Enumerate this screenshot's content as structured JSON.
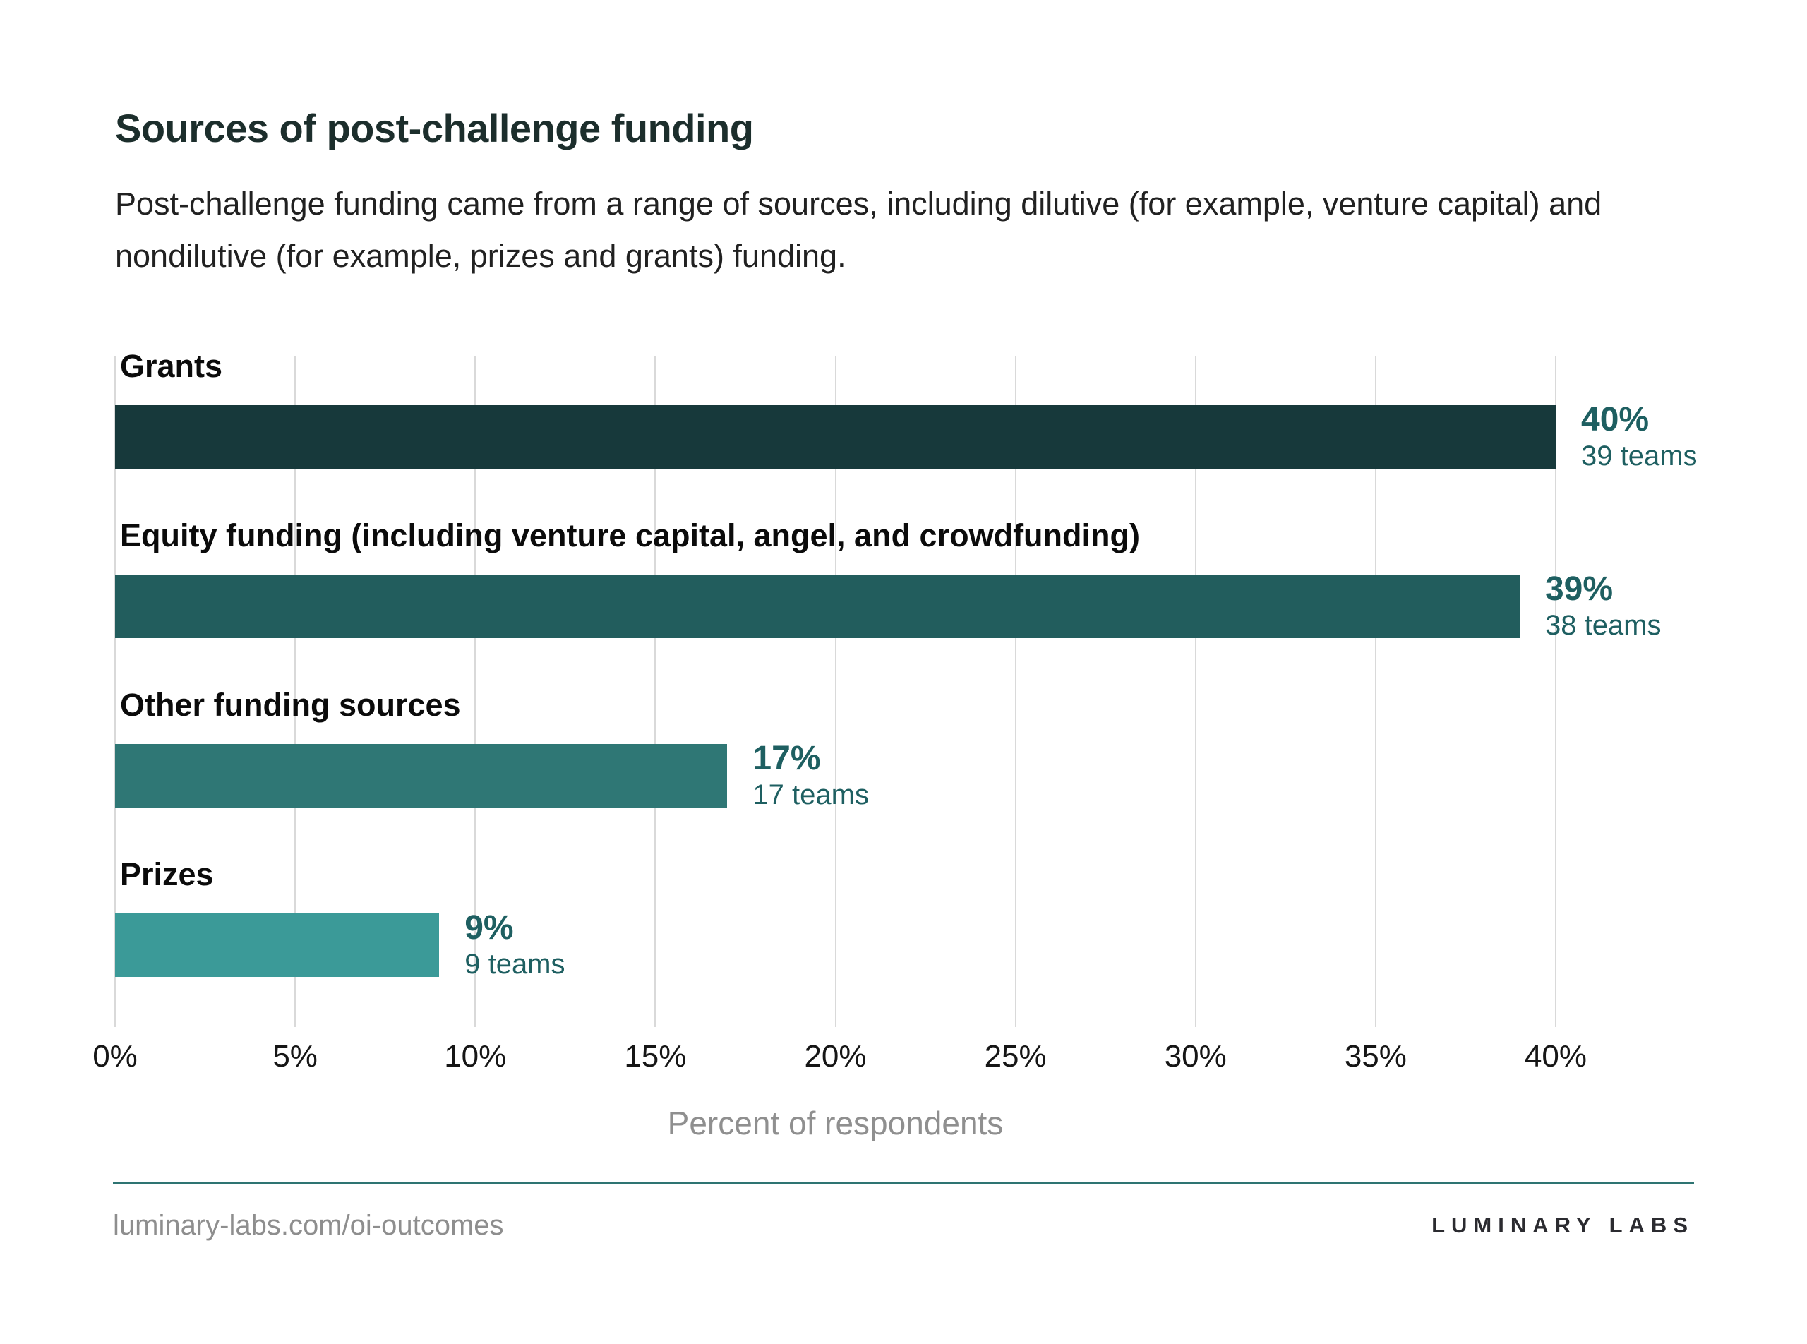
{
  "title": "Sources of post-challenge funding",
  "subtitle": "Post-challenge funding came from a range of sources, including dilutive (for example, venture capital) and nondilutive (for example, prizes and grants) funding.",
  "chart_data": {
    "type": "bar",
    "orientation": "horizontal",
    "title": "Sources of post-challenge funding",
    "categories": [
      "Grants",
      "Equity funding (including venture capital, angel, and crowdfunding)",
      "Other funding sources",
      "Prizes"
    ],
    "values": [
      40,
      39,
      17,
      9
    ],
    "teams": [
      39,
      38,
      17,
      9
    ],
    "value_labels": [
      "40%",
      "39%",
      "17%",
      "9%"
    ],
    "team_labels": [
      "39 teams",
      "38 teams",
      "17 teams",
      "9 teams"
    ],
    "bar_colors": [
      "#17393b",
      "#225d5d",
      "#2f7775",
      "#3b9a98"
    ],
    "xlabel": "Percent of respondents",
    "x_ticks": [
      "0%",
      "5%",
      "10%",
      "15%",
      "20%",
      "25%",
      "30%",
      "35%",
      "40%"
    ],
    "xlim": [
      0,
      40
    ],
    "grid": true,
    "gridline_color": "#d9d9d9",
    "value_text_color": "#1e5f61"
  },
  "footer": {
    "url": "luminary-labs.com/oi-outcomes",
    "brand": "LUMINARY LABS",
    "rule_color": "#2e7472"
  }
}
